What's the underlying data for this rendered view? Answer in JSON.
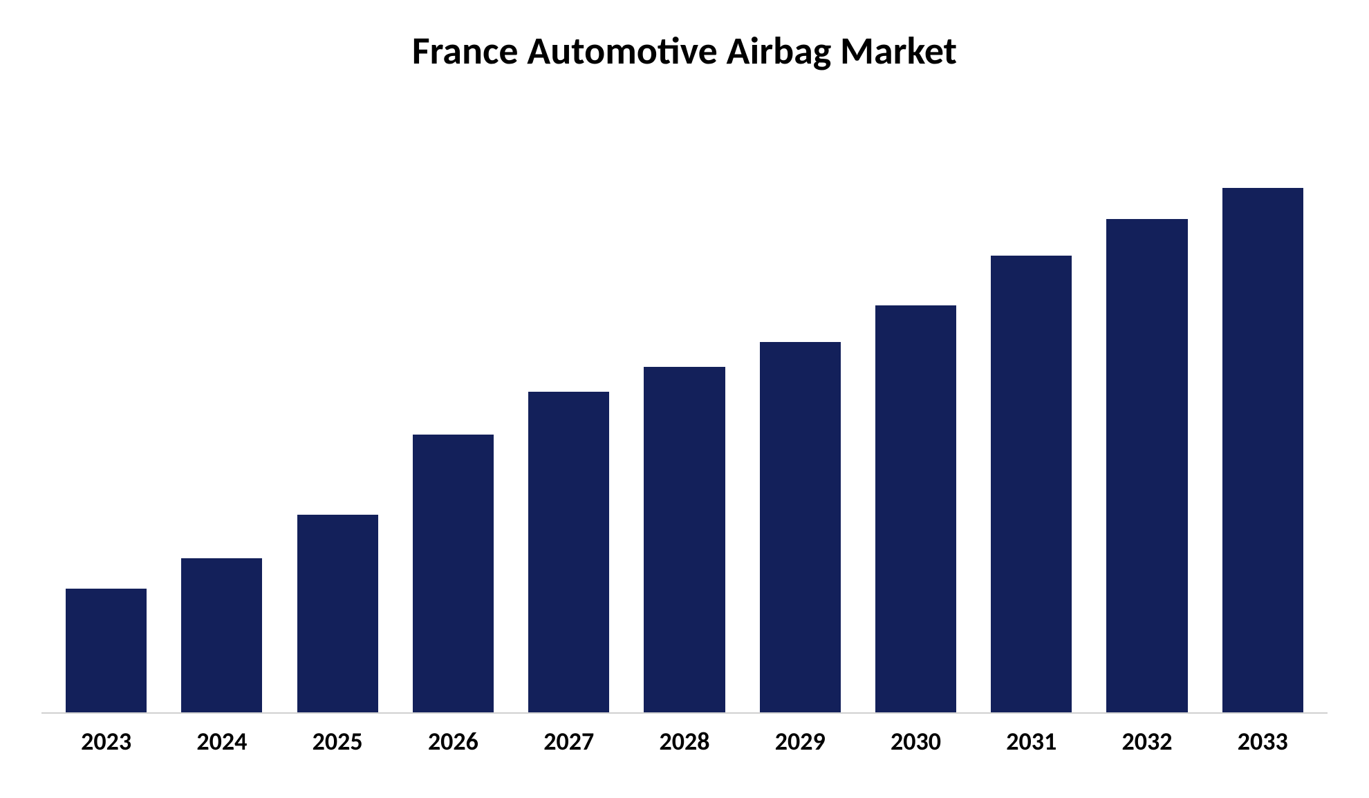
{
  "chart": {
    "type": "bar",
    "title": "France Automotive Airbag Market",
    "title_fontsize": 56,
    "title_fontweight": 700,
    "title_color": "#000000",
    "categories": [
      "2023",
      "2024",
      "2025",
      "2026",
      "2027",
      "2028",
      "2029",
      "2030",
      "2031",
      "2032",
      "2033"
    ],
    "values": [
      20,
      25,
      32,
      45,
      52,
      56,
      60,
      66,
      74,
      80,
      85
    ],
    "ylim": [
      0,
      100
    ],
    "bar_color": "#13205a",
    "bar_width": 0.7,
    "background_color": "#ffffff",
    "axis_line_color": "#d0d0d0",
    "xlabel_fontsize": 36,
    "xlabel_fontweight": 700,
    "xlabel_color": "#000000",
    "font_family": "Calibri, 'Segoe UI', Arial, sans-serif"
  }
}
